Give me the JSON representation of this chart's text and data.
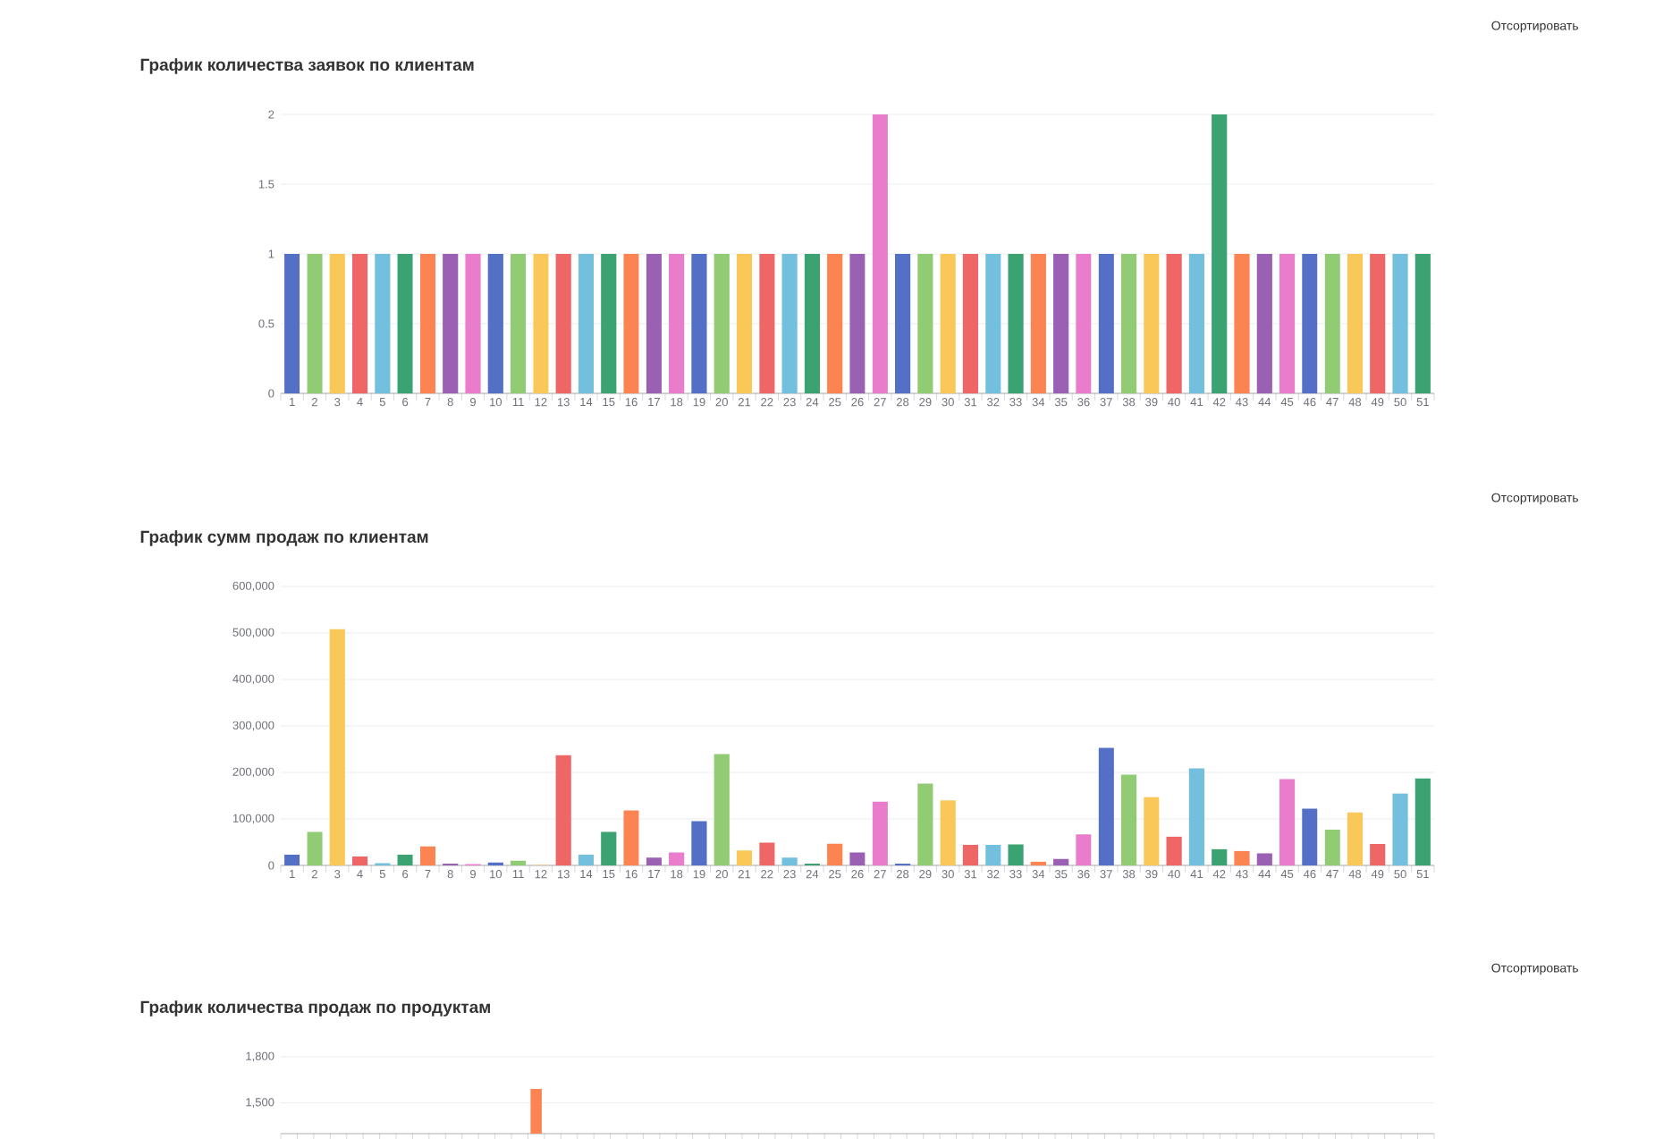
{
  "chart_data": [
    {
      "type": "bar",
      "title": "График количества заявок по клиентам",
      "annotations": [
        "Отсортировать"
      ],
      "categories": [
        "1",
        "2",
        "3",
        "4",
        "5",
        "6",
        "7",
        "8",
        "9",
        "10",
        "11",
        "12",
        "13",
        "14",
        "15",
        "16",
        "17",
        "18",
        "19",
        "20",
        "21",
        "22",
        "23",
        "24",
        "25",
        "26",
        "27",
        "28",
        "29",
        "30",
        "31",
        "32",
        "33",
        "34",
        "35",
        "36",
        "37",
        "38",
        "39",
        "40",
        "41",
        "42",
        "43",
        "44",
        "45",
        "46",
        "47",
        "48",
        "49",
        "50",
        "51"
      ],
      "values": [
        1,
        1,
        1,
        1,
        1,
        1,
        1,
        1,
        1,
        1,
        1,
        1,
        1,
        1,
        1,
        1,
        1,
        1,
        1,
        1,
        1,
        1,
        1,
        1,
        1,
        1,
        2,
        1,
        1,
        1,
        1,
        1,
        1,
        1,
        1,
        1,
        1,
        1,
        1,
        1,
        1,
        2,
        1,
        1,
        1,
        1,
        1,
        1,
        1,
        1,
        1
      ],
      "colors": [
        "#5470c6",
        "#91cc75",
        "#fac858",
        "#ee6666",
        "#73c0de",
        "#3ba272",
        "#fc8452",
        "#9a60b4",
        "#ea7ccc",
        "#5470c6",
        "#91cc75",
        "#fac858",
        "#ee6666",
        "#73c0de",
        "#3ba272",
        "#fc8452",
        "#9a60b4",
        "#ea7ccc",
        "#5470c6",
        "#91cc75",
        "#fac858",
        "#ee6666",
        "#73c0de",
        "#3ba272",
        "#fc8452",
        "#9a60b4",
        "#ea7ccc",
        "#5470c6",
        "#91cc75",
        "#fac858",
        "#ee6666",
        "#73c0de",
        "#3ba272",
        "#fc8452",
        "#9a60b4",
        "#ea7ccc",
        "#5470c6",
        "#91cc75",
        "#fac858",
        "#ee6666",
        "#73c0de",
        "#3ba272",
        "#fc8452",
        "#9a60b4",
        "#ea7ccc",
        "#5470c6",
        "#91cc75",
        "#fac858",
        "#ee6666",
        "#73c0de",
        "#3ba272"
      ],
      "ylim": [
        0,
        2
      ],
      "yticks": [
        0,
        0.5,
        1,
        1.5,
        2
      ],
      "grid": "y"
    },
    {
      "type": "bar",
      "title": "График сумм продаж по клиентам",
      "annotations": [
        "Отсортировать"
      ],
      "categories": [
        "1",
        "2",
        "3",
        "4",
        "5",
        "6",
        "7",
        "8",
        "9",
        "10",
        "11",
        "12",
        "13",
        "14",
        "15",
        "16",
        "17",
        "18",
        "19",
        "20",
        "21",
        "22",
        "23",
        "24",
        "25",
        "26",
        "27",
        "28",
        "29",
        "30",
        "31",
        "32",
        "33",
        "34",
        "35",
        "36",
        "37",
        "38",
        "39",
        "40",
        "41",
        "42",
        "43",
        "44",
        "45",
        "46",
        "47",
        "48",
        "49",
        "50",
        "51"
      ],
      "values": [
        23000,
        72000,
        508000,
        19000,
        5000,
        23000,
        41000,
        4000,
        3000,
        6000,
        10000,
        1000,
        237000,
        23000,
        72000,
        118000,
        17000,
        28000,
        95000,
        240000,
        32000,
        49000,
        17000,
        4000,
        47000,
        28000,
        137000,
        4000,
        176000,
        140000,
        44000,
        44000,
        45000,
        8000,
        14000,
        67000,
        253000,
        195000,
        147000,
        62000,
        209000,
        35000,
        31000,
        26000,
        186000,
        122000,
        77000,
        114000,
        46000,
        155000,
        187000
      ],
      "colors": [
        "#5470c6",
        "#91cc75",
        "#fac858",
        "#ee6666",
        "#73c0de",
        "#3ba272",
        "#fc8452",
        "#9a60b4",
        "#ea7ccc",
        "#5470c6",
        "#91cc75",
        "#fac858",
        "#ee6666",
        "#73c0de",
        "#3ba272",
        "#fc8452",
        "#9a60b4",
        "#ea7ccc",
        "#5470c6",
        "#91cc75",
        "#fac858",
        "#ee6666",
        "#73c0de",
        "#3ba272",
        "#fc8452",
        "#9a60b4",
        "#ea7ccc",
        "#5470c6",
        "#91cc75",
        "#fac858",
        "#ee6666",
        "#73c0de",
        "#3ba272",
        "#fc8452",
        "#9a60b4",
        "#ea7ccc",
        "#5470c6",
        "#91cc75",
        "#fac858",
        "#ee6666",
        "#73c0de",
        "#3ba272",
        "#fc8452",
        "#9a60b4",
        "#ea7ccc",
        "#5470c6",
        "#91cc75",
        "#fac858",
        "#ee6666",
        "#73c0de",
        "#3ba272"
      ],
      "ylim": [
        0,
        600000
      ],
      "yticks": [
        {
          "value": 0,
          "label": "0"
        },
        {
          "value": 100000,
          "label": "100,000"
        },
        {
          "value": 200000,
          "label": "200,000"
        },
        {
          "value": 300000,
          "label": "300,000"
        },
        {
          "value": 400000,
          "label": "400,000"
        },
        {
          "value": 500000,
          "label": "500,000"
        },
        {
          "value": 600000,
          "label": "600,000"
        }
      ],
      "grid": "y"
    },
    {
      "type": "bar",
      "title": "График количества продаж по продуктам",
      "annotations": [
        "Отсортировать"
      ],
      "categories": [
        null,
        null,
        null,
        null,
        null,
        null,
        null,
        null,
        null,
        null,
        null,
        null,
        null,
        null,
        null,
        null,
        null,
        null,
        null,
        null,
        null,
        null,
        null,
        null,
        null,
        null,
        null,
        null,
        null,
        null,
        null,
        null,
        null,
        null,
        null,
        null,
        null,
        null,
        null,
        null,
        null,
        null,
        null,
        null,
        null,
        null,
        null,
        null,
        null,
        null,
        null,
        null,
        null,
        null,
        null,
        null,
        null,
        null,
        null,
        null,
        null,
        null,
        null,
        null,
        null,
        null,
        null,
        null,
        null,
        null
      ],
      "values": [
        null,
        null,
        null,
        null,
        null,
        null,
        null,
        null,
        null,
        null,
        null,
        null,
        null,
        null,
        null,
        1590,
        null,
        null,
        null,
        null,
        null,
        null,
        null,
        null,
        null,
        null,
        null,
        null,
        null,
        null,
        null,
        null,
        null,
        null,
        null,
        null,
        null,
        null,
        null,
        null,
        null,
        null,
        null,
        null,
        null,
        null,
        null,
        null,
        null,
        null,
        null,
        null,
        null,
        null,
        null,
        null,
        null,
        null,
        null,
        null,
        null,
        null,
        null,
        null,
        null,
        null,
        null,
        null,
        null,
        null
      ],
      "color": "#fc8452",
      "ylim": [
        1300,
        1800
      ],
      "yticks": [
        {
          "value": 1500,
          "label": "1,500"
        },
        {
          "value": 1800,
          "label": "1,800"
        }
      ],
      "grid": "y",
      "tick_labels": "y"
    }
  ]
}
